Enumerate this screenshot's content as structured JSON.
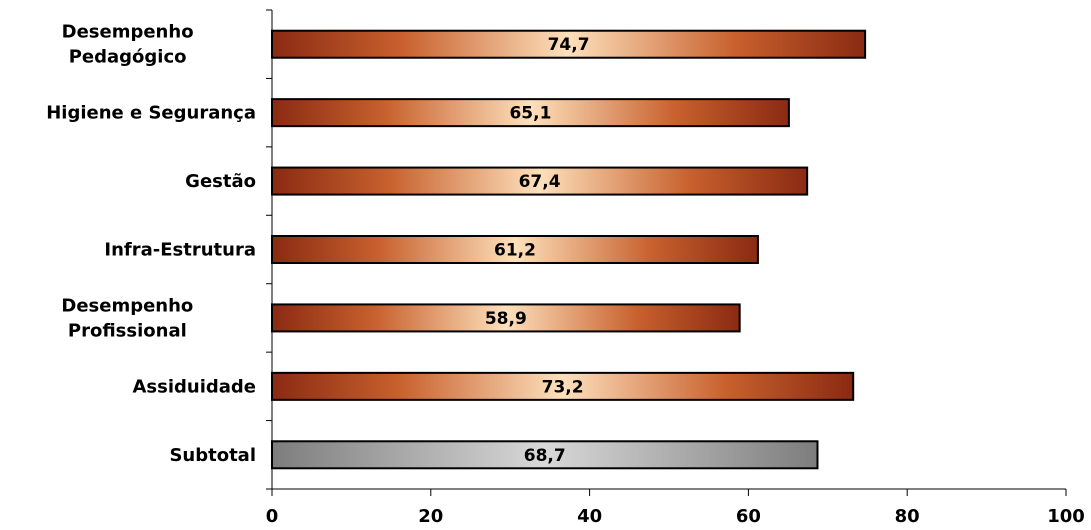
{
  "chart_data": {
    "type": "bar",
    "orientation": "horizontal",
    "categories": [
      [
        "Desempenho",
        "Pedagógico"
      ],
      [
        "Higiene e Segurança"
      ],
      [
        "Gestão"
      ],
      [
        "Infra-Estrutura"
      ],
      [
        "Desempenho",
        "Profissional"
      ],
      [
        "Assiduidade"
      ],
      [
        "Subtotal"
      ]
    ],
    "values": [
      74.7,
      65.1,
      67.4,
      61.2,
      58.9,
      73.2,
      68.7
    ],
    "data_labels": [
      "74,7",
      "65,1",
      "67,4",
      "61,2",
      "58,9",
      "73,2",
      "68,7"
    ],
    "bar_styles": [
      "copper",
      "copper",
      "copper",
      "copper",
      "copper",
      "copper",
      "gray"
    ],
    "xlim": [
      0,
      100
    ],
    "x_ticks": [
      0,
      20,
      40,
      60,
      80,
      100
    ],
    "x_tick_labels": [
      "0",
      "20",
      "40",
      "60",
      "80",
      "100"
    ],
    "title": "",
    "xlabel": "",
    "ylabel": "",
    "grid": false,
    "legend": "none",
    "colors": {
      "copper_edge": "#8a2a12",
      "copper_mid": "#c8612e",
      "copper_center": "#fde0bc",
      "gray_edge": "#7d7d7d",
      "gray_center": "#d8d8d8",
      "outline": "#000000",
      "axis": "#000000"
    }
  }
}
